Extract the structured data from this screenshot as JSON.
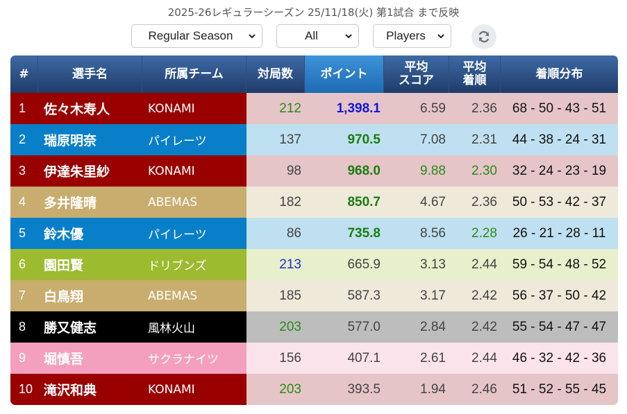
{
  "status_text": "2025-26レギュラーシーズン 25/11/18(火) 第1試合 まで反映",
  "filters": {
    "season": "Regular Season",
    "team": "All",
    "view": "Players",
    "refresh_icon": "refresh-icon"
  },
  "headers": {
    "rank": "#",
    "name": "選手名",
    "team": "所属チーム",
    "games": "対局数",
    "points": "ポイント",
    "avg_score_1": "平均",
    "avg_score_2": "スコア",
    "avg_rank_1": "平均",
    "avg_rank_2": "着順",
    "dist": "着順分布"
  },
  "team_colors": {
    "KONAMI": {
      "left": "#990000",
      "right": "#e5c5c8"
    },
    "パイレーツ": {
      "left": "#0a7fc9",
      "right": "#bfe0f0"
    },
    "ABEMAS": {
      "left": "#c8ad6e",
      "right": "#efe9d9"
    },
    "ドリブンズ": {
      "left": "#9cbb2f",
      "right": "#e7efcc"
    },
    "風林火山": {
      "left": "#000000",
      "right": "#bdbdbd"
    },
    "サクラナイツ": {
      "left": "#f3a0bf",
      "right": "#fbe3ec"
    }
  },
  "rows": [
    {
      "rank": "1",
      "name": "佐々木寿人",
      "team": "KONAMI",
      "games": "212",
      "games_style": "green",
      "points": "1,398.1",
      "points_style": "boldblue",
      "score": "6.59",
      "score_style": "",
      "avg_rank": "2.36",
      "avg_rank_style": "",
      "dist": "68 - 50 - 43 - 51"
    },
    {
      "rank": "2",
      "name": "瑞原明奈",
      "team": "パイレーツ",
      "games": "137",
      "games_style": "",
      "points": "970.5",
      "points_style": "boldgreen",
      "score": "7.08",
      "score_style": "",
      "avg_rank": "2.31",
      "avg_rank_style": "",
      "dist": "44 - 38 - 24 - 31"
    },
    {
      "rank": "3",
      "name": "伊達朱里紗",
      "team": "KONAMI",
      "games": "98",
      "games_style": "",
      "points": "968.0",
      "points_style": "boldgreen",
      "score": "9.88",
      "score_style": "green",
      "avg_rank": "2.30",
      "avg_rank_style": "green",
      "dist": "32 - 24 - 23 - 19"
    },
    {
      "rank": "4",
      "name": "多井隆晴",
      "team": "ABEMAS",
      "games": "182",
      "games_style": "",
      "points": "850.7",
      "points_style": "boldgreen",
      "score": "4.67",
      "score_style": "",
      "avg_rank": "2.36",
      "avg_rank_style": "",
      "dist": "50 - 53 - 42 - 37"
    },
    {
      "rank": "5",
      "name": "鈴木優",
      "team": "パイレーツ",
      "games": "86",
      "games_style": "",
      "points": "735.8",
      "points_style": "boldgreen",
      "score": "8.56",
      "score_style": "",
      "avg_rank": "2.28",
      "avg_rank_style": "green",
      "dist": "26 - 21 - 28 - 11"
    },
    {
      "rank": "6",
      "name": "園田賢",
      "team": "ドリブンズ",
      "games": "213",
      "games_style": "blue",
      "points": "665.9",
      "points_style": "",
      "score": "3.13",
      "score_style": "",
      "avg_rank": "2.44",
      "avg_rank_style": "",
      "dist": "59 - 54 - 48 - 52"
    },
    {
      "rank": "7",
      "name": "白鳥翔",
      "team": "ABEMAS",
      "games": "185",
      "games_style": "",
      "points": "587.3",
      "points_style": "",
      "score": "3.17",
      "score_style": "",
      "avg_rank": "2.42",
      "avg_rank_style": "",
      "dist": "56 - 37 - 50 - 42"
    },
    {
      "rank": "8",
      "name": "勝又健志",
      "team": "風林火山",
      "games": "203",
      "games_style": "green",
      "points": "577.0",
      "points_style": "",
      "score": "2.84",
      "score_style": "",
      "avg_rank": "2.42",
      "avg_rank_style": "",
      "dist": "55 - 54 - 47 - 47"
    },
    {
      "rank": "9",
      "name": "堀慎吾",
      "team": "サクラナイツ",
      "games": "156",
      "games_style": "",
      "points": "407.1",
      "points_style": "",
      "score": "2.61",
      "score_style": "",
      "avg_rank": "2.44",
      "avg_rank_style": "",
      "dist": "46 - 32 - 42 - 36"
    },
    {
      "rank": "10",
      "name": "滝沢和典",
      "team": "KONAMI",
      "games": "203",
      "games_style": "green",
      "points": "393.5",
      "points_style": "",
      "score": "1.94",
      "score_style": "",
      "avg_rank": "2.46",
      "avg_rank_style": "",
      "dist": "51 - 52 - 55 - 45"
    }
  ]
}
